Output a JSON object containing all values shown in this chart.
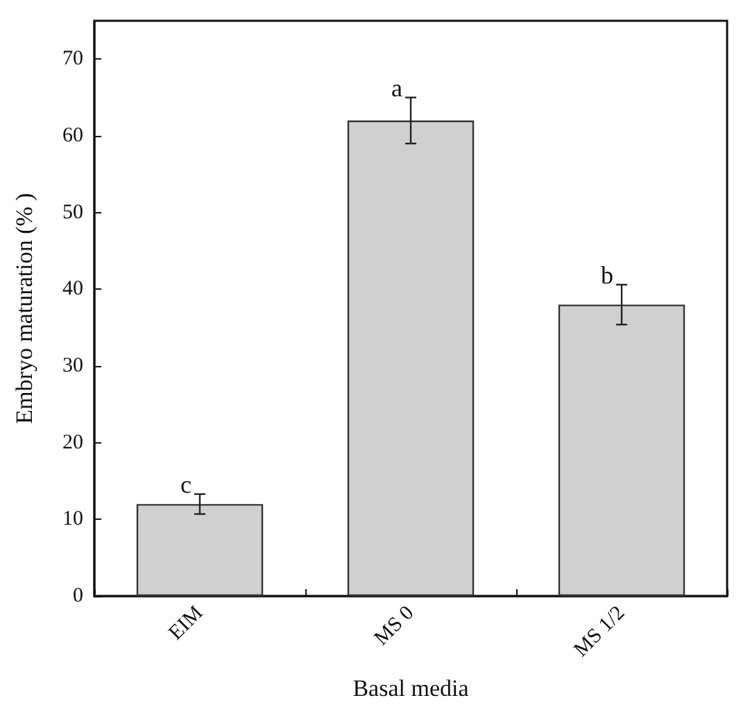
{
  "chart_data": {
    "type": "bar",
    "xlabel": "Basal media",
    "ylabel": "Embryo maturation (% )",
    "categories": [
      "EIM",
      "MS 0",
      "MS 1/2"
    ],
    "values": [
      12,
      62,
      38
    ],
    "errors": [
      1.3,
      3,
      2.6
    ],
    "color": "#d0d0d0",
    "ylim": [
      0,
      75
    ],
    "yticks": [
      0,
      10,
      20,
      30,
      40,
      50,
      60,
      70
    ],
    "grid": false,
    "annotations": [
      {
        "text": "c",
        "x": "EIM",
        "y": 13.3
      },
      {
        "text": "a",
        "x": "MS 0",
        "y": 65
      },
      {
        "text": "b",
        "x": "MS 1/2",
        "y": 40.6
      }
    ]
  }
}
